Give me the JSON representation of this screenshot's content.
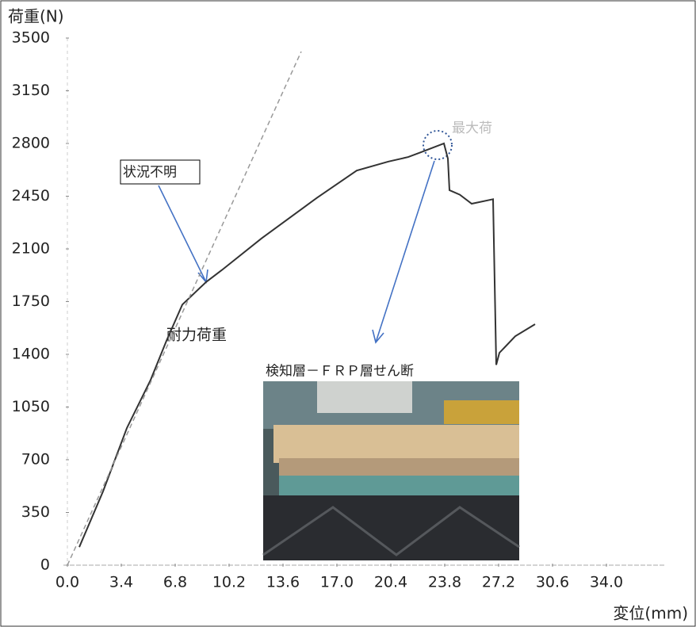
{
  "chart_data": {
    "type": "line",
    "ylabel": "荷重(N)",
    "xlabel": "変位(mm)",
    "xlim": [
      0,
      34
    ],
    "ylim": [
      0,
      3500
    ],
    "xticks": [
      {
        "value": 0,
        "label": "0.0"
      },
      3.4,
      6.8,
      10.2,
      13.6,
      {
        "value": 17,
        "label": "17.0"
      },
      20.4,
      23.8,
      27.2,
      30.6,
      {
        "value": 34,
        "label": "34.0"
      }
    ],
    "yticks": [
      0,
      350,
      700,
      1050,
      1400,
      1750,
      2100,
      2450,
      2800,
      3150,
      3500
    ],
    "series": [
      {
        "color": "#333333",
        "x": [
          0.75,
          2.25,
          3.75,
          5.25,
          6.25,
          7.25,
          8.75,
          9.75,
          12.25,
          15.75,
          18.25,
          20.25,
          21.5,
          22.25,
          23.75,
          24.0,
          24.1,
          24.75,
          25.5,
          26.85,
          27.05,
          27.25,
          28.25,
          29.5
        ],
        "values": [
          120,
          490,
          910,
          1230,
          1490,
          1730,
          1880,
          1960,
          2170,
          2440,
          2620,
          2680,
          2710,
          2740,
          2800,
          2700,
          2490,
          2460,
          2400,
          2430,
          1330,
          1410,
          1520,
          1600
        ]
      },
      {
        "color": "#999999",
        "x": [
          0,
          14.75
        ],
        "values": [
          0,
          3410
        ]
      }
    ],
    "annotations": [
      "状況不明",
      "耐力荷重",
      "最大荷",
      "検知層－ＦＲＰ層せん断"
    ]
  }
}
